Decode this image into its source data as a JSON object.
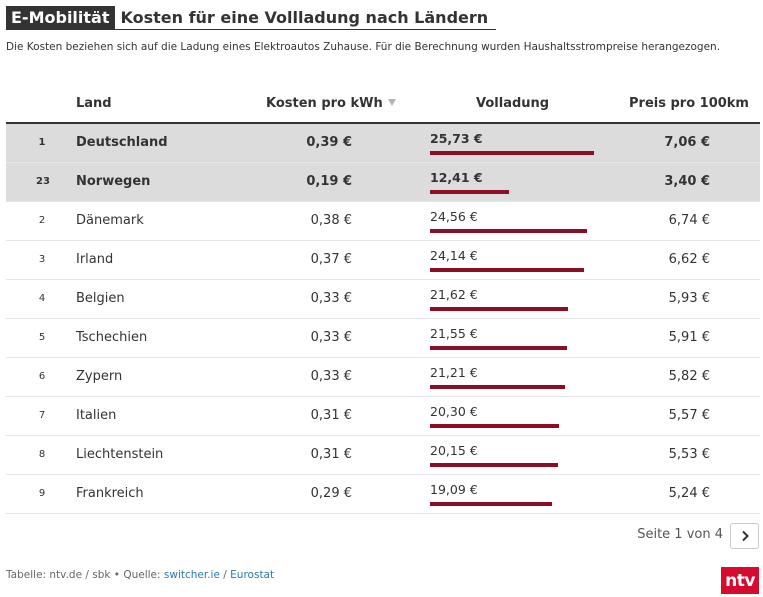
{
  "header": {
    "tag": "E-Mobilität",
    "title": "Kosten für eine Vollladung nach Ländern",
    "subtitle": "Die Kosten beziehen sich auf die Ladung eines Elektroautos Zuhause. Für die Berechnung wurden Haushaltsstrompreise herangezogen."
  },
  "table": {
    "columns": {
      "land": "Land",
      "kwh": "Kosten pro kWh",
      "full": "Volladung",
      "km": "Preis pro 100km"
    },
    "rows": [
      {
        "rank": "1",
        "land": "Deutschland",
        "kwh": "0,39 €",
        "full": "25,73 €",
        "full_value": 25.73,
        "km": "7,06 €",
        "highlight": true
      },
      {
        "rank": "23",
        "land": "Norwegen",
        "kwh": "0,19 €",
        "full": "12,41 €",
        "full_value": 12.41,
        "km": "3,40 €",
        "highlight": true
      },
      {
        "rank": "2",
        "land": "Dänemark",
        "kwh": "0,38 €",
        "full": "24,56 €",
        "full_value": 24.56,
        "km": "6,74 €",
        "highlight": false
      },
      {
        "rank": "3",
        "land": "Irland",
        "kwh": "0,37 €",
        "full": "24,14 €",
        "full_value": 24.14,
        "km": "6,62 €",
        "highlight": false
      },
      {
        "rank": "4",
        "land": "Belgien",
        "kwh": "0,33 €",
        "full": "21,62 €",
        "full_value": 21.62,
        "km": "5,93 €",
        "highlight": false
      },
      {
        "rank": "5",
        "land": "Tschechien",
        "kwh": "0,33 €",
        "full": "21,55 €",
        "full_value": 21.55,
        "km": "5,91 €",
        "highlight": false
      },
      {
        "rank": "6",
        "land": "Zypern",
        "kwh": "0,33 €",
        "full": "21,21 €",
        "full_value": 21.21,
        "km": "5,82 €",
        "highlight": false
      },
      {
        "rank": "7",
        "land": "Italien",
        "kwh": "0,31 €",
        "full": "20,30 €",
        "full_value": 20.3,
        "km": "5,57 €",
        "highlight": false
      },
      {
        "rank": "8",
        "land": "Liechtenstein",
        "kwh": "0,31 €",
        "full": "20,15 €",
        "full_value": 20.15,
        "km": "5,53 €",
        "highlight": false
      },
      {
        "rank": "9",
        "land": "Frankreich",
        "kwh": "0,29 €",
        "full": "19,09 €",
        "full_value": 19.09,
        "km": "5,24 €",
        "highlight": false
      }
    ],
    "bar_color": "#8b0e22",
    "highlight_color": "#dcdcdc",
    "bar_max_value": 25.73
  },
  "pagination": {
    "label": "Seite 1 von 4",
    "next_icon": "chevron-right-icon"
  },
  "footer": {
    "prefix": "Tabelle: ntv.de / sbk • Quelle: ",
    "source1": "switcher.ie",
    "separator": " / ",
    "source2": "Eurostat"
  },
  "logo": {
    "text": "ntv",
    "color": "#d50c2f"
  }
}
